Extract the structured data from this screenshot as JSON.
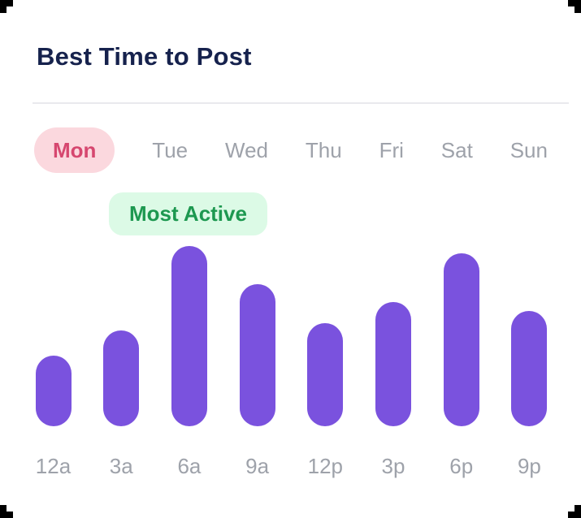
{
  "colors": {
    "title": "#16224D",
    "divider": "#E9E9ED",
    "day-inactive": "#9EA2AA",
    "day-active-bg": "#FBD8DE",
    "day-active-text": "#D6476F",
    "badge-bg": "#DCFAE6",
    "badge-text": "#1D9850",
    "bar": "#7A52DE",
    "axis-label": "#9EA2AA",
    "corner-mark": "#000000"
  },
  "header": {
    "title": "Best Time to Post"
  },
  "day_tabs": {
    "items": [
      {
        "label": "Mon",
        "active": true
      },
      {
        "label": "Tue",
        "active": false
      },
      {
        "label": "Wed",
        "active": false
      },
      {
        "label": "Thu",
        "active": false
      },
      {
        "label": "Fri",
        "active": false
      },
      {
        "label": "Sat",
        "active": false
      },
      {
        "label": "Sun",
        "active": false
      }
    ]
  },
  "badge": {
    "label": "Most Active"
  },
  "chart_data": {
    "type": "bar",
    "categories": [
      "12a",
      "3a",
      "6a",
      "9a",
      "12p",
      "3p",
      "6p",
      "9p"
    ],
    "values": [
      39,
      53,
      100,
      79,
      57,
      69,
      96,
      64
    ],
    "title": "Best Time to Post",
    "xlabel": "",
    "ylabel": "",
    "ylim": [
      0,
      100
    ],
    "grid": false,
    "legend": null,
    "selected_day": "Mon",
    "annotations": [
      {
        "text": "Most Active",
        "category": "6a"
      }
    ]
  }
}
